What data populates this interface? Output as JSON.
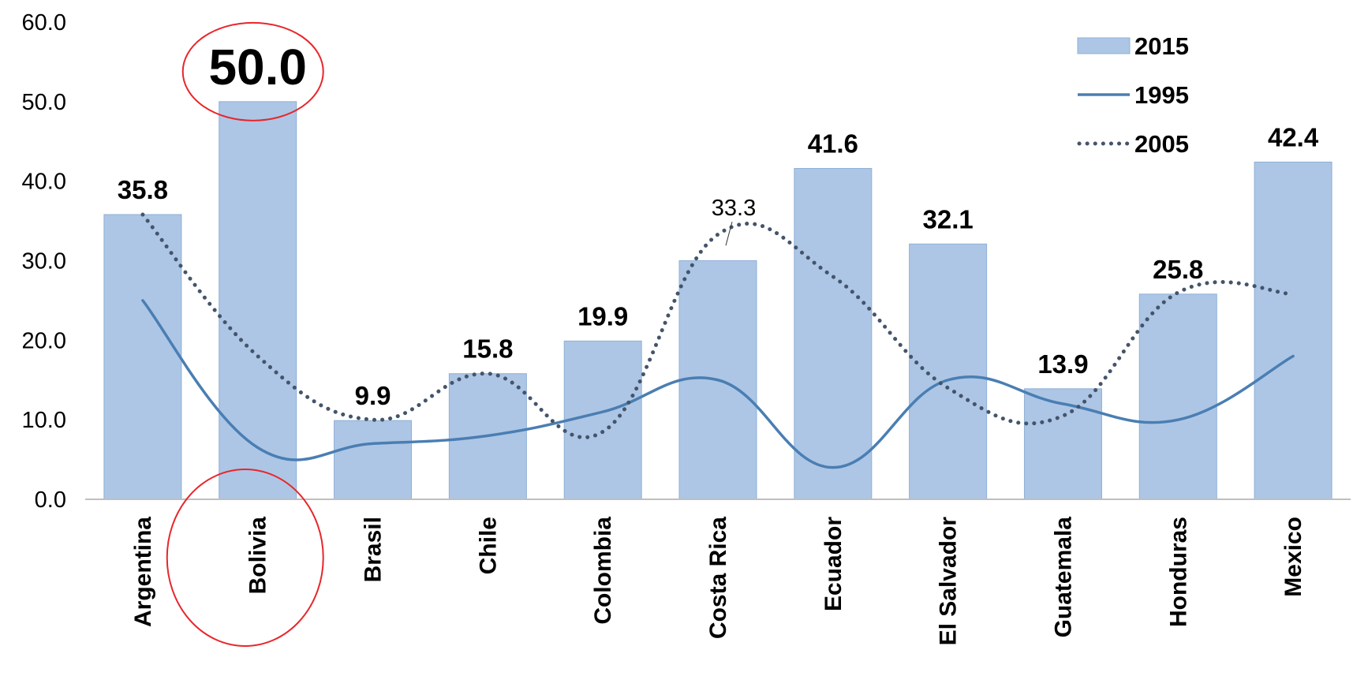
{
  "chart_data": {
    "type": "bar",
    "categories": [
      "Argentina",
      "Bolivia",
      "Brasil",
      "Chile",
      "Colombia",
      "Costa Rica",
      "Ecuador",
      "El Salvador",
      "Guatemala",
      "Honduras",
      "Mexico"
    ],
    "series": [
      {
        "name": "2015",
        "type": "bar",
        "values": [
          35.8,
          50.0,
          9.9,
          15.8,
          19.9,
          30.0,
          41.6,
          32.1,
          13.9,
          25.8,
          42.4
        ],
        "color": "#adc6e5"
      },
      {
        "name": "1995",
        "type": "line",
        "style": "solid",
        "values": [
          25.0,
          6.5,
          7.0,
          8.0,
          11.0,
          15.0,
          4.0,
          15.0,
          12.0,
          10.0,
          18.0
        ],
        "color": "#4a7eb3"
      },
      {
        "name": "2005",
        "type": "line",
        "style": "dotted",
        "values": [
          35.8,
          18.0,
          10.0,
          15.8,
          8.5,
          33.3,
          28.0,
          14.0,
          10.5,
          26.0,
          25.8
        ],
        "color": "#44546a"
      }
    ],
    "data_labels": [
      {
        "text": "35.8",
        "category": "Argentina",
        "value": 35.8,
        "style": "bold"
      },
      {
        "text": "50.0",
        "category": "Bolivia",
        "value": 50.0,
        "style": "big"
      },
      {
        "text": "9.9",
        "category": "Brasil",
        "value": 9.9,
        "style": "bold"
      },
      {
        "text": "15.8",
        "category": "Chile",
        "value": 15.8,
        "style": "bold"
      },
      {
        "text": "19.9",
        "category": "Colombia",
        "value": 19.9,
        "style": "bold"
      },
      {
        "text": "33.3",
        "category": "Costa Rica",
        "value": 33.3,
        "style": "thin"
      },
      {
        "text": "41.6",
        "category": "Ecuador",
        "value": 41.6,
        "style": "bold"
      },
      {
        "text": "32.1",
        "category": "El Salvador",
        "value": 32.1,
        "style": "bold"
      },
      {
        "text": "13.9",
        "category": "Guatemala",
        "value": 13.9,
        "style": "bold"
      },
      {
        "text": "25.8",
        "category": "Honduras",
        "value": 25.8,
        "style": "bold"
      },
      {
        "text": "42.4",
        "category": "Mexico",
        "value": 42.4,
        "style": "bold"
      }
    ],
    "y_ticks": [
      "0.0",
      "10.0",
      "20.0",
      "30.0",
      "40.0",
      "50.0",
      "60.0"
    ],
    "ylim": [
      0,
      60
    ],
    "grid": false,
    "legend_position": "top-right",
    "highlight_color": "#e8262b"
  }
}
